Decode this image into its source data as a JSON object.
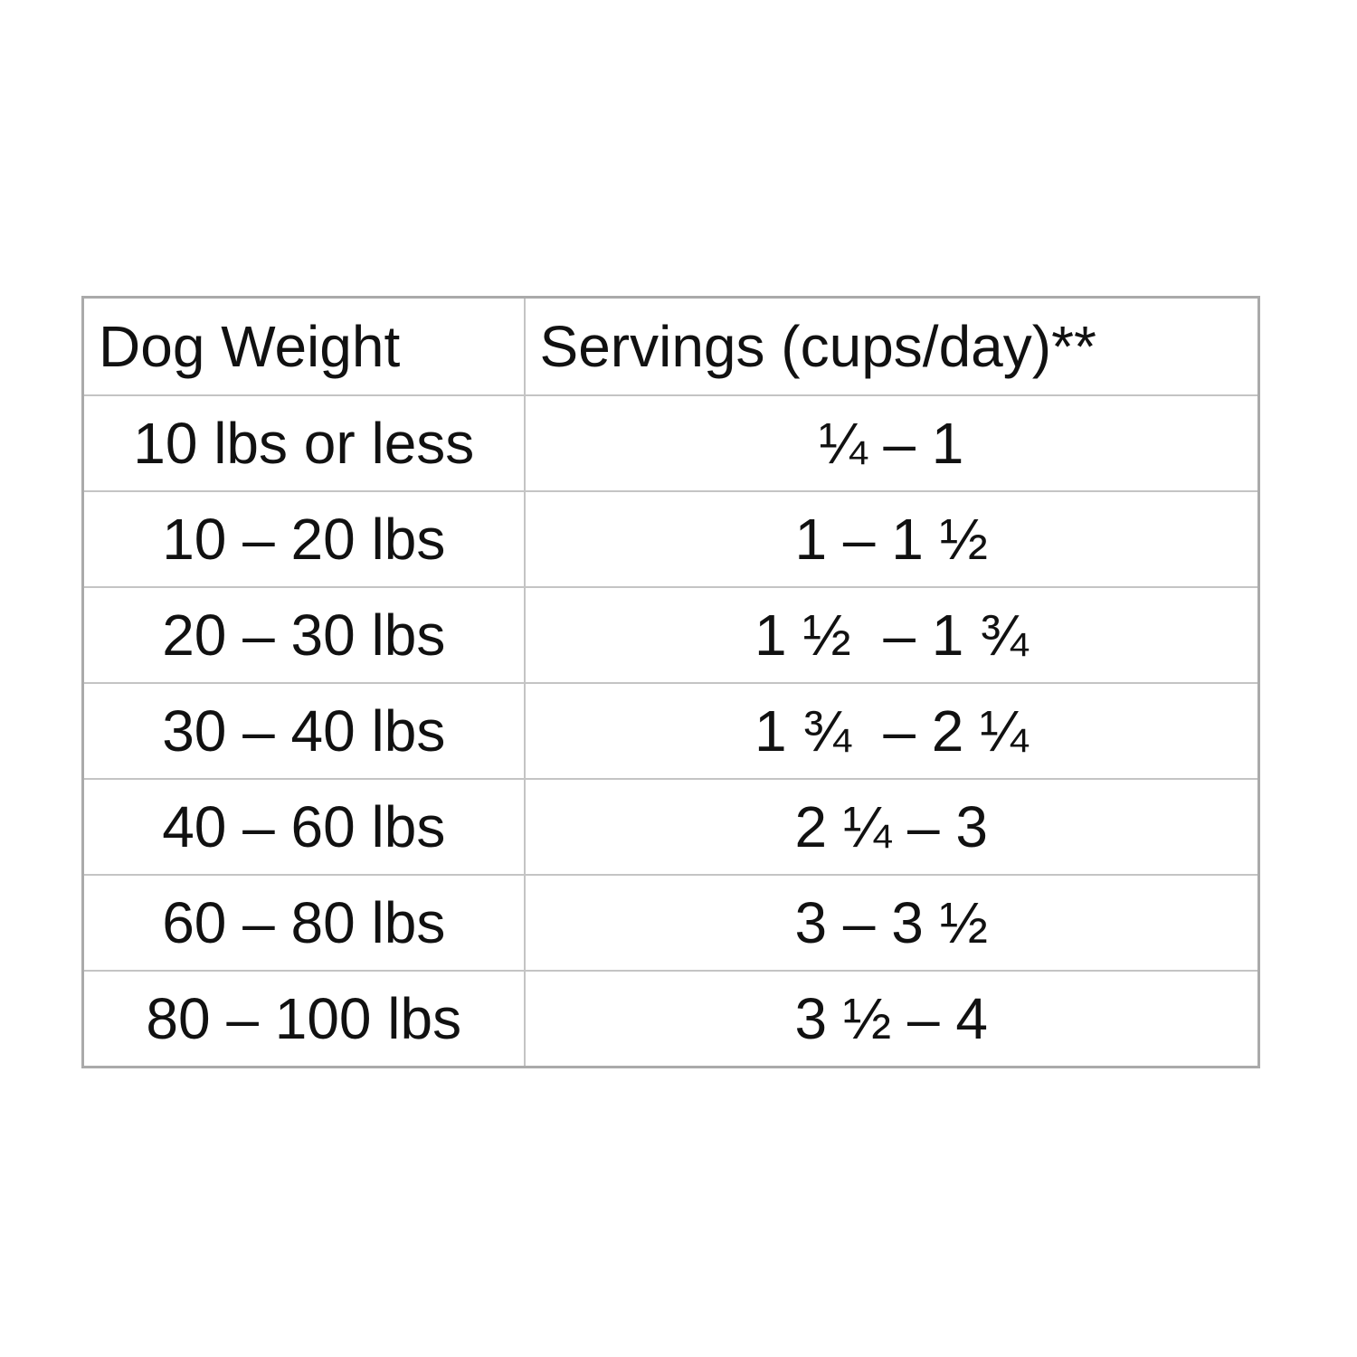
{
  "table": {
    "header": [
      "Dog Weight",
      "Servings (cups/day)**"
    ],
    "rows": [
      [
        "10 lbs or less",
        "¼ – 1"
      ],
      [
        "10 – 20 lbs",
        "1 – 1 ½"
      ],
      [
        "20 – 30 lbs",
        "1 ½  – 1 ¾"
      ],
      [
        "30 – 40 lbs",
        "1 ¾  – 2 ¼"
      ],
      [
        "40 – 60 lbs",
        "2 ¼ – 3"
      ],
      [
        "60 – 80 lbs",
        "3 – 3 ½"
      ],
      [
        "80 – 100 lbs",
        "3 ½ – 4"
      ]
    ]
  }
}
